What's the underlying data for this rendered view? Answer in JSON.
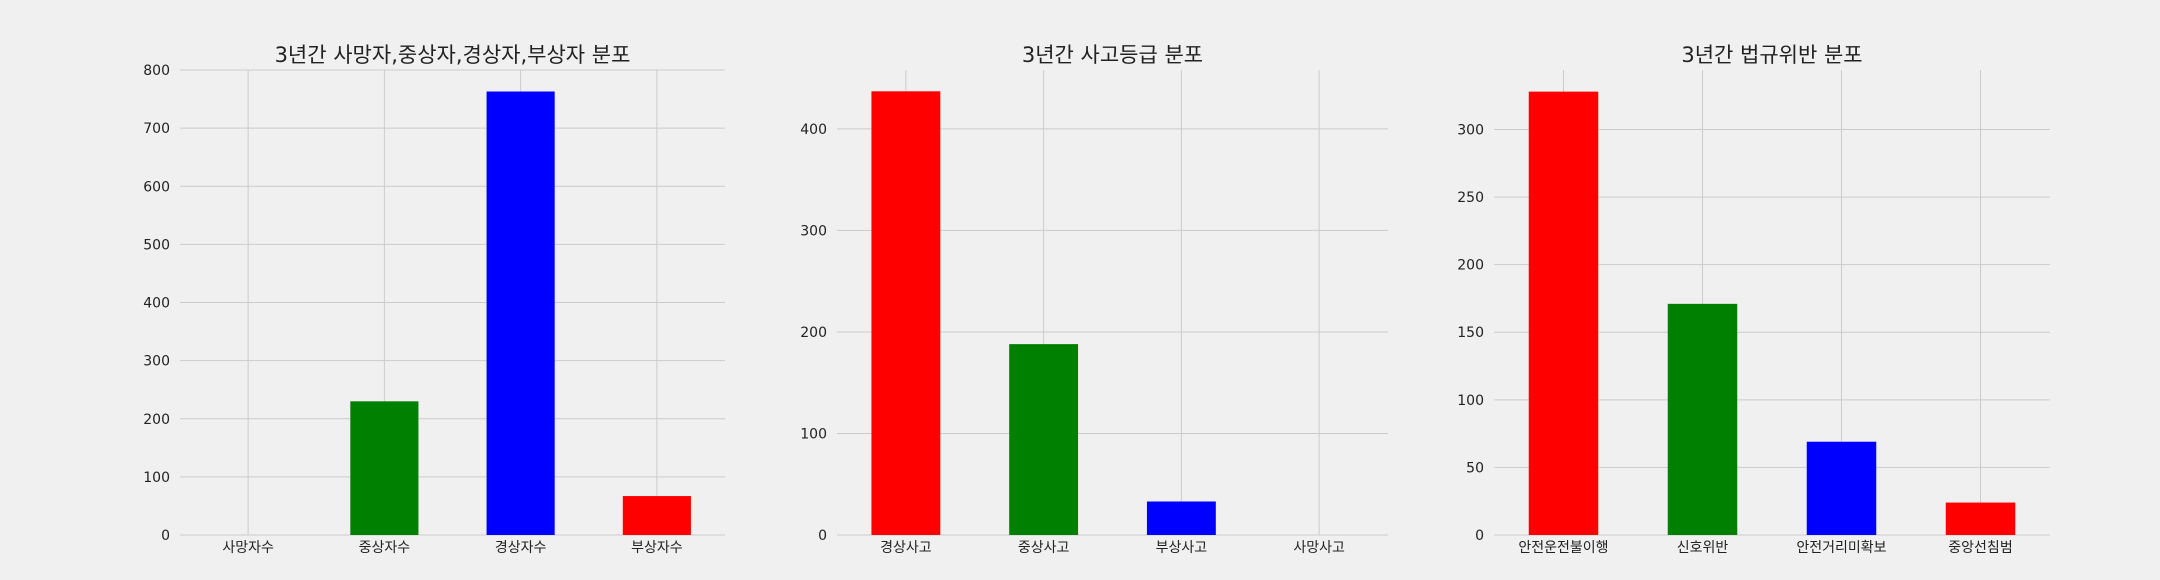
{
  "chart_data": [
    {
      "type": "bar",
      "title": "3년간 사망자,중상자,경상자,부상자 분포",
      "categories": [
        "사망자수",
        "중상자수",
        "경상자수",
        "부상자수"
      ],
      "values": [
        0,
        230,
        763,
        67
      ],
      "colors": [
        "#ff0000",
        "#008000",
        "#0000ff",
        "#ff0000"
      ],
      "ylim": [
        0,
        800
      ],
      "yticks": [
        0,
        100,
        200,
        300,
        400,
        500,
        600,
        700,
        800
      ],
      "xlabel": "",
      "ylabel": "",
      "grid": true
    },
    {
      "type": "bar",
      "title": "3년간 사고등급 분포",
      "categories": [
        "경상사고",
        "중상사고",
        "부상사고",
        "사망사고"
      ],
      "values": [
        437,
        188,
        33,
        0
      ],
      "colors": [
        "#ff0000",
        "#008000",
        "#0000ff",
        "#ff0000"
      ],
      "ylim": [
        0,
        458
      ],
      "yticks": [
        0,
        100,
        200,
        300,
        400
      ],
      "xlabel": "",
      "ylabel": "",
      "grid": true
    },
    {
      "type": "bar",
      "title": "3년간 법규위반 분포",
      "categories": [
        "안전운전불이행",
        "신호위반",
        "안전거리미확보",
        "중앙선침범"
      ],
      "values": [
        328,
        171,
        69,
        24
      ],
      "colors": [
        "#ff0000",
        "#008000",
        "#0000ff",
        "#ff0000"
      ],
      "ylim": [
        0,
        344
      ],
      "yticks": [
        0,
        50,
        100,
        150,
        200,
        250,
        300
      ],
      "xlabel": "",
      "ylabel": "",
      "grid": true
    }
  ]
}
